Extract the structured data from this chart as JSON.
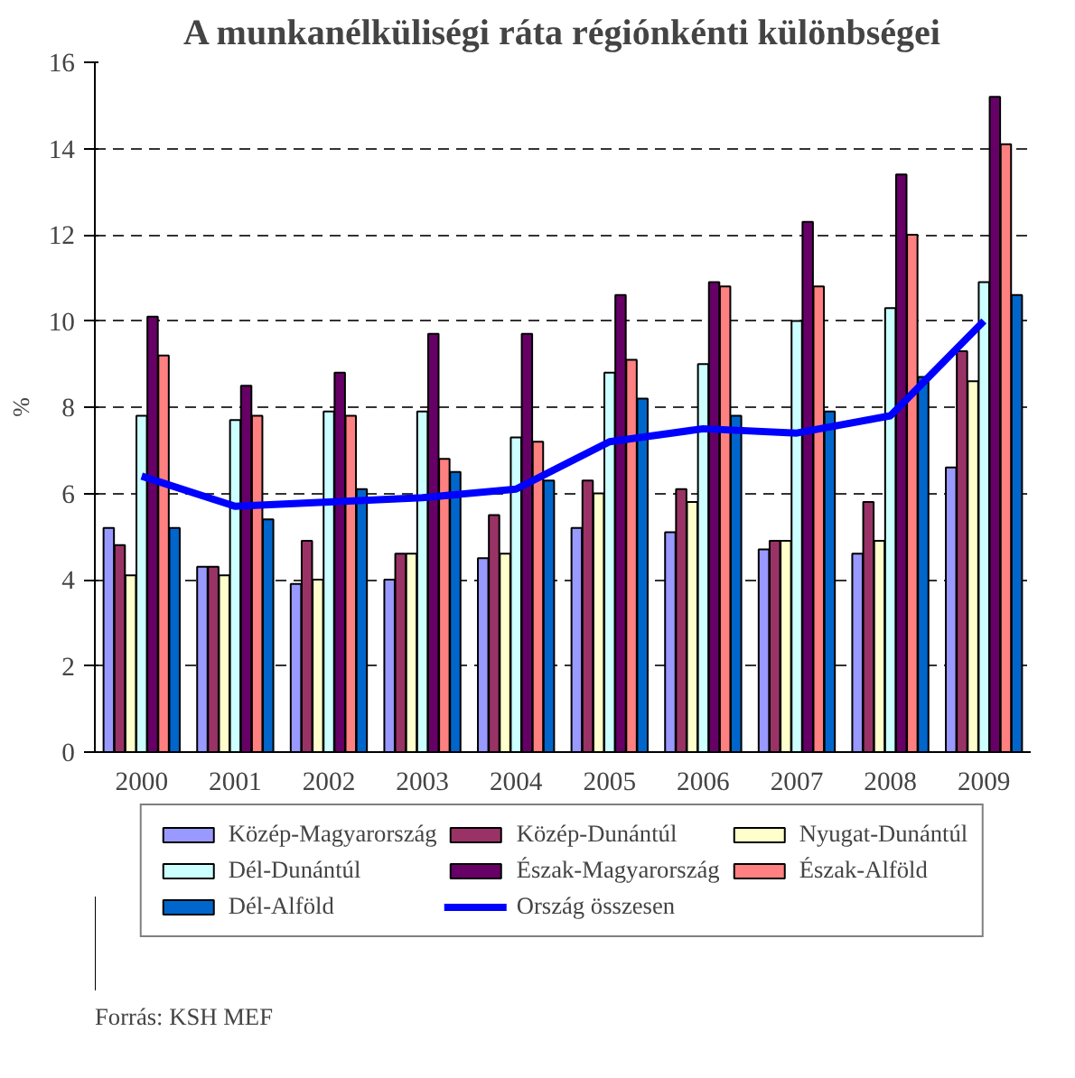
{
  "chart_data": {
    "type": "bar",
    "title": "A munkanélküliségi ráta régiónkénti különbségei",
    "ylabel": "%",
    "categories": [
      "2000",
      "2001",
      "2002",
      "2003",
      "2004",
      "2005",
      "2006",
      "2007",
      "2008",
      "2009"
    ],
    "series": [
      {
        "name": "Közép-Magyarország",
        "color": "#9999ff",
        "values": [
          5.2,
          4.3,
          3.9,
          4.0,
          4.5,
          5.2,
          5.1,
          4.7,
          4.6,
          6.6
        ]
      },
      {
        "name": "Közép-Dunántúl",
        "color": "#993366",
        "values": [
          4.8,
          4.3,
          4.9,
          4.6,
          5.5,
          6.3,
          6.1,
          4.9,
          5.8,
          9.3
        ]
      },
      {
        "name": "Nyugat-Dunántúl",
        "color": "#ffffcc",
        "values": [
          4.1,
          4.1,
          4.0,
          4.6,
          4.6,
          6.0,
          5.8,
          4.9,
          4.9,
          8.6
        ]
      },
      {
        "name": "Dél-Dunántúl",
        "color": "#ccffff",
        "values": [
          7.8,
          7.7,
          7.9,
          7.9,
          7.3,
          8.8,
          9.0,
          10.0,
          10.3,
          10.9
        ]
      },
      {
        "name": "Észak-Magyarország",
        "color": "#660066",
        "values": [
          10.1,
          8.5,
          8.8,
          9.7,
          9.7,
          10.6,
          10.9,
          12.3,
          13.4,
          15.2
        ]
      },
      {
        "name": "Észak-Alföld",
        "color": "#ff8080",
        "values": [
          9.2,
          7.8,
          7.8,
          6.8,
          7.2,
          9.1,
          10.8,
          10.8,
          12.0,
          14.1
        ]
      },
      {
        "name": "Dél-Alföld",
        "color": "#0066cc",
        "values": [
          5.2,
          5.4,
          6.1,
          6.5,
          6.3,
          8.2,
          7.8,
          7.9,
          8.7,
          10.6
        ]
      },
      {
        "name": "Ország összesen",
        "type": "line",
        "color": "#0000ff",
        "values": [
          6.4,
          5.7,
          5.8,
          5.9,
          6.1,
          7.2,
          7.5,
          7.4,
          7.8,
          10.0
        ]
      }
    ],
    "ylim": [
      0,
      16
    ],
    "yticks": [
      0,
      2,
      4,
      6,
      8,
      10,
      12,
      14,
      16
    ],
    "grid": "y",
    "legend": "bottom",
    "annotations": [
      "Forrás: KSH MEF"
    ]
  }
}
